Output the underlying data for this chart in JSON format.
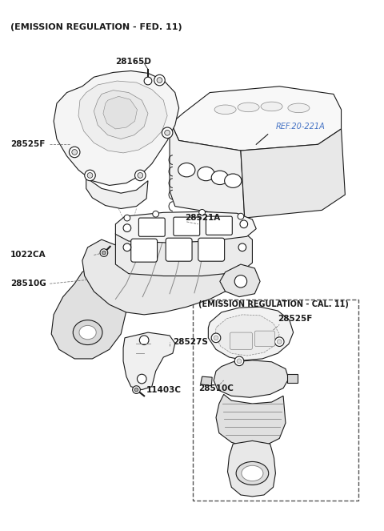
{
  "background_color": "#ffffff",
  "text_color": "#1a1a1a",
  "ref_color": "#4472c4",
  "line_color": "#1a1a1a",
  "fig_width": 4.8,
  "fig_height": 6.63,
  "dpi": 100,
  "main_title": "(EMISSION REGULATION - FED. 11)",
  "cal_title": "(EMISSION REGULATION - CAL. 11)",
  "ref_label": "REF.20-221A",
  "label_28165D": "28165D",
  "label_28525F": "28525F",
  "label_1022CA": "1022CA",
  "label_28521A": "28521A",
  "label_28510G": "28510G",
  "label_28527S": "28527S",
  "label_11403C": "11403C",
  "label_28525F_cal": "28525F",
  "label_28510C": "28510C"
}
